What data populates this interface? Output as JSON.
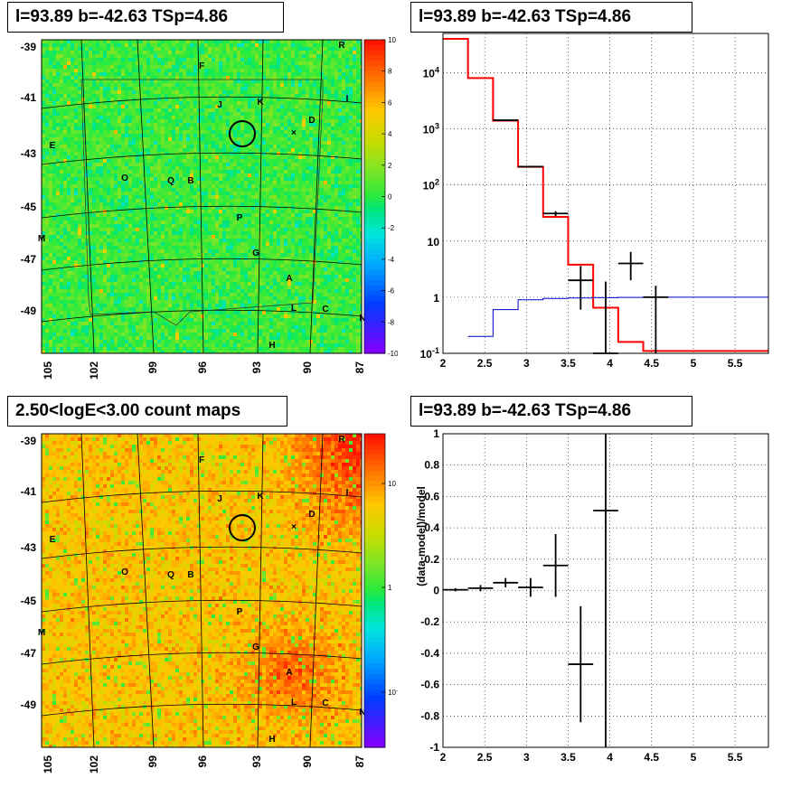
{
  "panels": {
    "tl": {
      "title": "l=93.89 b=-42.63 TSp=4.86"
    },
    "tr": {
      "title": "l=93.89 b=-42.63 TSp=4.86"
    },
    "bl": {
      "title": "2.50<logE<3.00 count maps"
    },
    "br": {
      "title": "l=93.89 b=-42.63 TSp=4.86"
    }
  },
  "colors": {
    "model": "#ff0000",
    "background": "#0000cc",
    "data": "#000000"
  },
  "chart_data": [
    {
      "type": "heatmap",
      "title": "l=93.89 b=-42.63 TSp=4.86",
      "x_ticks": [
        "105",
        "102",
        "99",
        "96",
        "93",
        "90",
        "87"
      ],
      "y_ticks": [
        "-39",
        "-41",
        "-43",
        "-45",
        "-47",
        "-49"
      ],
      "colorbar": {
        "ticks": [
          "10",
          "8",
          "6",
          "4",
          "2",
          "0",
          "-2",
          "-4",
          "-6",
          "-8",
          "-10"
        ],
        "range": [
          -10,
          10
        ]
      },
      "sources": [
        {
          "label": "F"
        },
        {
          "label": "R"
        },
        {
          "label": "J"
        },
        {
          "label": "K"
        },
        {
          "label": "I"
        },
        {
          "label": "D"
        },
        {
          "label": "E"
        },
        {
          "label": "O"
        },
        {
          "label": "Q"
        },
        {
          "label": "B"
        },
        {
          "label": "P"
        },
        {
          "label": "M"
        },
        {
          "label": "G"
        },
        {
          "label": "A"
        },
        {
          "label": "L"
        },
        {
          "label": "C"
        },
        {
          "label": "N"
        },
        {
          "label": "H"
        }
      ]
    },
    {
      "type": "line",
      "title": "l=93.89 b=-42.63 TSp=4.86",
      "y_scale": "log",
      "xlim": [
        2,
        5.9
      ],
      "ylim": [
        0.1,
        50000
      ],
      "x_ticks": [
        "2",
        "2.5",
        "3",
        "3.5",
        "4",
        "4.5",
        "5",
        "5.5"
      ],
      "y_ticks": [
        {
          "value": 10000,
          "base": "10",
          "exp": "4"
        },
        {
          "value": 1000,
          "base": "10",
          "exp": "3"
        },
        {
          "value": 100,
          "base": "10",
          "exp": "2"
        },
        {
          "value": 10,
          "base": "10",
          "exp": ""
        },
        {
          "value": 1,
          "base": "1",
          "exp": ""
        },
        {
          "value": 0.1,
          "base": "10",
          "exp": "-1"
        }
      ],
      "series": [
        {
          "color": "red",
          "edges": [
            2.0,
            2.3,
            2.6,
            2.9,
            3.2,
            3.5,
            3.8,
            4.1,
            4.4,
            5.9
          ],
          "values": [
            40000,
            8000,
            1400,
            210,
            27,
            3.8,
            0.65,
            0.16,
            0.11
          ]
        },
        {
          "color": "blue",
          "edges": [
            2.3,
            2.6,
            2.9,
            3.2,
            3.5,
            3.8,
            4.1,
            4.4,
            5.9
          ],
          "values": [
            0.2,
            0.6,
            0.9,
            0.95,
            0.97,
            0.98,
            0.99,
            1.0
          ]
        }
      ],
      "points": [
        {
          "x": 2.75,
          "y": 1420,
          "xerr": 0.15,
          "ylo": 1380,
          "yhi": 1460
        },
        {
          "x": 3.05,
          "y": 212,
          "xerr": 0.15,
          "ylo": 205,
          "yhi": 220
        },
        {
          "x": 3.35,
          "y": 31,
          "xerr": 0.15,
          "ylo": 28,
          "yhi": 34
        },
        {
          "x": 3.65,
          "y": 2,
          "xerr": 0.15,
          "ylo": 0.6,
          "yhi": 3.6
        },
        {
          "x": 3.95,
          "y": 0.1,
          "xerr": 0.15,
          "ylo": 0.1,
          "yhi": 1.9
        },
        {
          "x": 4.25,
          "y": 4,
          "xerr": 0.15,
          "ylo": 2.0,
          "yhi": 6.4
        },
        {
          "x": 4.55,
          "y": 1.0,
          "xerr": 0.15,
          "ylo": 0.1,
          "yhi": 1.6
        }
      ]
    },
    {
      "type": "heatmap",
      "title": "2.50<logE<3.00 count maps",
      "x_ticks": [
        "105",
        "102",
        "99",
        "96",
        "93",
        "90",
        "87"
      ],
      "y_ticks": [
        "-39",
        "-41",
        "-43",
        "-45",
        "-47",
        "-49"
      ],
      "colorbar": {
        "scale": "log",
        "ticks": [
          {
            "base": "10",
            "exp": ""
          },
          {
            "base": "1",
            "exp": ""
          },
          {
            "base": "10",
            "exp": "-1"
          }
        ]
      },
      "sources": [
        {
          "label": "F"
        },
        {
          "label": "R"
        },
        {
          "label": "J"
        },
        {
          "label": "K"
        },
        {
          "label": "I"
        },
        {
          "label": "D"
        },
        {
          "label": "E"
        },
        {
          "label": "O"
        },
        {
          "label": "Q"
        },
        {
          "label": "B"
        },
        {
          "label": "P"
        },
        {
          "label": "M"
        },
        {
          "label": "G"
        },
        {
          "label": "A"
        },
        {
          "label": "L"
        },
        {
          "label": "C"
        },
        {
          "label": "N"
        },
        {
          "label": "H"
        }
      ]
    },
    {
      "type": "scatter",
      "title": "l=93.89 b=-42.63 TSp=4.86",
      "ylabel": "(data-model)/model",
      "xlim": [
        2,
        5.9
      ],
      "ylim": [
        -1,
        1
      ],
      "x_ticks": [
        "2",
        "2.5",
        "3",
        "3.5",
        "4",
        "4.5",
        "5",
        "5.5"
      ],
      "y_ticks": [
        "1",
        "0.8",
        "0.6",
        "0.4",
        "0.2",
        "0",
        "-0.2",
        "-0.4",
        "-0.6",
        "-0.8",
        "-1"
      ],
      "points": [
        {
          "x": 2.15,
          "y": 0.005,
          "xerr": 0.15,
          "yerr": 0.01
        },
        {
          "x": 2.45,
          "y": 0.015,
          "xerr": 0.15,
          "yerr": 0.02
        },
        {
          "x": 2.75,
          "y": 0.05,
          "xerr": 0.15,
          "yerr": 0.03
        },
        {
          "x": 3.05,
          "y": 0.02,
          "xerr": 0.15,
          "yerr": 0.06
        },
        {
          "x": 3.35,
          "y": 0.16,
          "xerr": 0.15,
          "yerr": 0.2
        },
        {
          "x": 3.65,
          "y": -0.47,
          "xerr": 0.15,
          "yerr": 0.37
        },
        {
          "x": 3.95,
          "y": 0.51,
          "xerr": 0.15,
          "yerr": 1.8
        }
      ]
    }
  ]
}
